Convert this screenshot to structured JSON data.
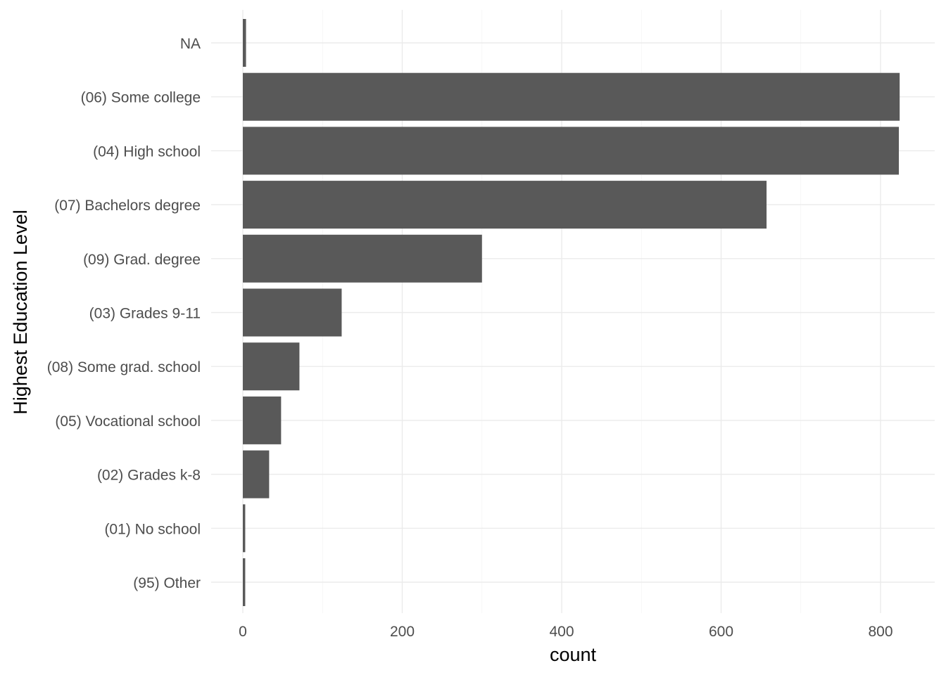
{
  "chart_data": {
    "type": "bar",
    "orientation": "horizontal",
    "title": "",
    "xlabel": "count",
    "ylabel": "Highest Education Level",
    "categories": [
      "NA",
      "(06) Some college",
      "(04) High school",
      "(07) Bachelors degree",
      "(09) Grad. degree",
      "(03) Grades 9-11",
      "(08) Some grad. school",
      "(05) Vocational school",
      "(02) Grades k-8",
      "(01) No school",
      "(95) Other"
    ],
    "values": [
      4,
      824,
      823,
      657,
      300,
      124,
      71,
      48,
      33,
      3,
      3
    ],
    "xlim": [
      -41,
      864
    ],
    "xticks": [
      0,
      200,
      400,
      600,
      800
    ],
    "grid": true,
    "legend": "none",
    "bar_color": "#595959"
  }
}
